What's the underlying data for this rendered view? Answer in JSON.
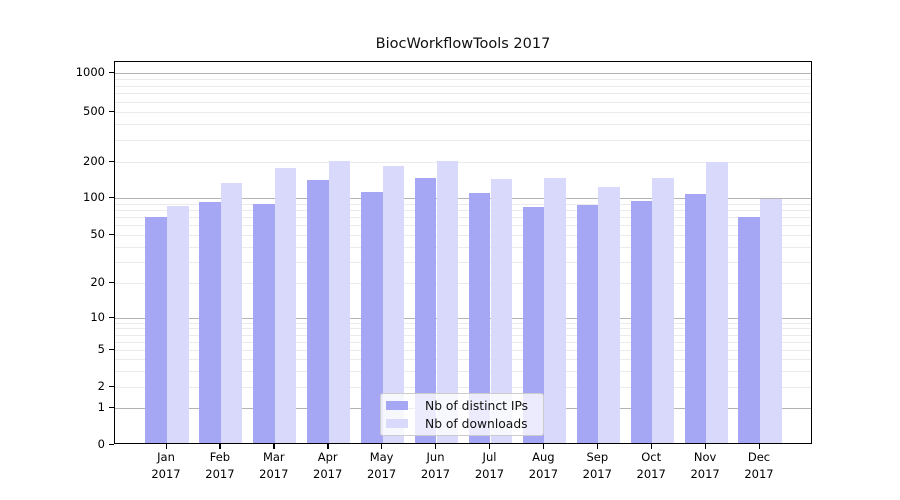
{
  "title": "BiocWorkflowTools 2017",
  "chart_data": {
    "type": "bar",
    "title": "BiocWorkflowTools 2017",
    "categories": [
      "Jan",
      "Feb",
      "Mar",
      "Apr",
      "May",
      "Jun",
      "Jul",
      "Aug",
      "Sep",
      "Oct",
      "Nov",
      "Dec"
    ],
    "category_year": "2017",
    "series": [
      {
        "name": "Nb of distinct IPs",
        "color": "#a5a6f4",
        "values": [
          67,
          89,
          86,
          135,
          108,
          141,
          106,
          81,
          85,
          91,
          104,
          67
        ]
      },
      {
        "name": "Nb of downloads",
        "color": "#d9dafb",
        "values": [
          83,
          129,
          170,
          197,
          178,
          198,
          139,
          141,
          120,
          141,
          193,
          94
        ]
      }
    ],
    "y_scale": "symlog",
    "y_ticks": [
      0,
      1,
      2,
      5,
      10,
      20,
      50,
      100,
      200,
      500,
      1000
    ],
    "ylim": [
      0,
      1250
    ],
    "grid": true,
    "legend_position": "lower center"
  },
  "legend": {
    "items": [
      {
        "label": "Nb of distinct IPs"
      },
      {
        "label": "Nb of downloads"
      }
    ]
  },
  "colors": {
    "bar_distinct_ips": "#a5a6f4",
    "bar_downloads": "#d9dafb",
    "grid_major": "#b3b3b3",
    "grid_minor": "#ebebeb",
    "axis": "#000000"
  }
}
